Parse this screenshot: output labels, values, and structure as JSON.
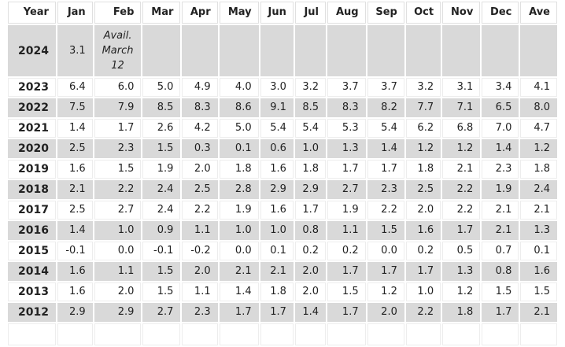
{
  "colors": {
    "alt_row_bg": "#d9d9d9",
    "cell_border": "#ededed",
    "header_border": "#e0e0e0",
    "text": "#222222"
  },
  "chart_data": {
    "type": "table",
    "columns": [
      "Year",
      "Jan",
      "Feb",
      "Mar",
      "Apr",
      "May",
      "Jun",
      "Jul",
      "Aug",
      "Sep",
      "Oct",
      "Nov",
      "Dec",
      "Ave"
    ],
    "note_cell": {
      "row_index": 0,
      "col_index": 2,
      "text": "Avail.\nMarch\n12"
    },
    "rows": [
      {
        "cells": [
          "2024",
          "3.1",
          "Avail.\nMarch\n12",
          "",
          "",
          "",
          "",
          "",
          "",
          "",
          "",
          "",
          "",
          ""
        ]
      },
      {
        "cells": [
          "2023",
          "6.4",
          "6.0",
          "5.0",
          "4.9",
          "4.0",
          "3.0",
          "3.2",
          "3.7",
          "3.7",
          "3.2",
          "3.1",
          "3.4",
          "4.1"
        ]
      },
      {
        "cells": [
          "2022",
          "7.5",
          "7.9",
          "8.5",
          "8.3",
          "8.6",
          "9.1",
          "8.5",
          "8.3",
          "8.2",
          "7.7",
          "7.1",
          "6.5",
          "8.0"
        ]
      },
      {
        "cells": [
          "2021",
          "1.4",
          "1.7",
          "2.6",
          "4.2",
          "5.0",
          "5.4",
          "5.4",
          "5.3",
          "5.4",
          "6.2",
          "6.8",
          "7.0",
          "4.7"
        ]
      },
      {
        "cells": [
          "2020",
          "2.5",
          "2.3",
          "1.5",
          "0.3",
          "0.1",
          "0.6",
          "1.0",
          "1.3",
          "1.4",
          "1.2",
          "1.2",
          "1.4",
          "1.2"
        ]
      },
      {
        "cells": [
          "2019",
          "1.6",
          "1.5",
          "1.9",
          "2.0",
          "1.8",
          "1.6",
          "1.8",
          "1.7",
          "1.7",
          "1.8",
          "2.1",
          "2.3",
          "1.8"
        ]
      },
      {
        "cells": [
          "2018",
          "2.1",
          "2.2",
          "2.4",
          "2.5",
          "2.8",
          "2.9",
          "2.9",
          "2.7",
          "2.3",
          "2.5",
          "2.2",
          "1.9",
          "2.4"
        ]
      },
      {
        "cells": [
          "2017",
          "2.5",
          "2.7",
          "2.4",
          "2.2",
          "1.9",
          "1.6",
          "1.7",
          "1.9",
          "2.2",
          "2.0",
          "2.2",
          "2.1",
          "2.1"
        ]
      },
      {
        "cells": [
          "2016",
          "1.4",
          "1.0",
          "0.9",
          "1.1",
          "1.0",
          "1.0",
          "0.8",
          "1.1",
          "1.5",
          "1.6",
          "1.7",
          "2.1",
          "1.3"
        ]
      },
      {
        "cells": [
          "2015",
          "-0.1",
          "0.0",
          "-0.1",
          "-0.2",
          "0.0",
          "0.1",
          "0.2",
          "0.2",
          "0.0",
          "0.2",
          "0.5",
          "0.7",
          "0.1"
        ]
      },
      {
        "cells": [
          "2014",
          "1.6",
          "1.1",
          "1.5",
          "2.0",
          "2.1",
          "2.1",
          "2.0",
          "1.7",
          "1.7",
          "1.7",
          "1.3",
          "0.8",
          "1.6"
        ]
      },
      {
        "cells": [
          "2013",
          "1.6",
          "2.0",
          "1.5",
          "1.1",
          "1.4",
          "1.8",
          "2.0",
          "1.5",
          "1.2",
          "1.0",
          "1.2",
          "1.5",
          "1.5"
        ]
      },
      {
        "cells": [
          "2012",
          "2.9",
          "2.9",
          "2.7",
          "2.3",
          "1.7",
          "1.7",
          "1.4",
          "1.7",
          "2.0",
          "2.2",
          "1.8",
          "1.7",
          "2.1"
        ]
      }
    ]
  }
}
